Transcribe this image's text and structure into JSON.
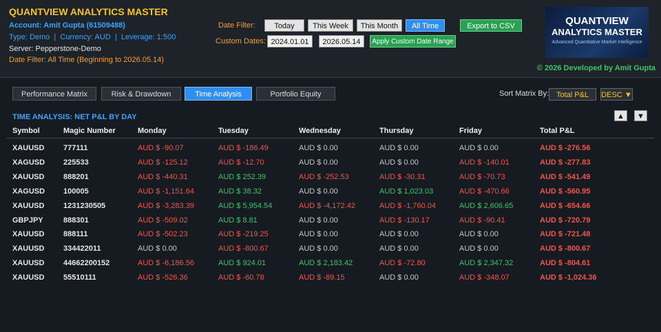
{
  "header": {
    "title": "QUANTVIEW ANALYTICS MASTER",
    "account": "Account: Amit Gupta (61509488)",
    "account_info": "Type: Demo  |  Currency: AUD  |  Leverage: 1:500",
    "server": "Server: Pepperstone-Demo",
    "date_filter_status": "Date Filter: All Time (Beginning to 2026.05.14)"
  },
  "filters": {
    "label": "Date Filter:",
    "buttons": [
      "Today",
      "This Week",
      "This Month",
      "All Time"
    ],
    "active": 3
  },
  "export_button": "Export to CSV",
  "custom_dates": {
    "label": "Custom Dates:",
    "from": "2024.01.01",
    "to": "2026.05.14",
    "apply": "Apply Custom Date Range"
  },
  "logo": {
    "line1": "QUANTVIEW",
    "line2": "ANALYTICS MASTER",
    "tagline": "Advanced Quantitative Market Intelligence"
  },
  "credit": "© 2026 Developed by Amit Gupta",
  "tabs": {
    "items": [
      "Performance Matrix",
      "Risk & Drawdown",
      "Time Analysis",
      "Portfolio Equity"
    ],
    "active": 2
  },
  "sort": {
    "label": "Sort Matrix By:",
    "field": "Total P&L",
    "order": "DESC ▼"
  },
  "section_title": "TIME ANALYSIS: NET P&L BY DAY",
  "scroll_buttons": [
    "▲",
    "▼"
  ],
  "table": {
    "columns": [
      "Symbol",
      "Magic Number",
      "Monday",
      "Tuesday",
      "Wednesday",
      "Thursday",
      "Friday",
      "Total P&L"
    ],
    "rows": [
      [
        "XAUUSD",
        "777111",
        "AUD $ -90.07",
        "AUD $ -186.49",
        "AUD $ 0.00",
        "AUD $ 0.00",
        "AUD $ 0.00",
        "AUD $ -276.56"
      ],
      [
        "XAGUSD",
        "225533",
        "AUD $ -125.12",
        "AUD $ -12.70",
        "AUD $ 0.00",
        "AUD $ 0.00",
        "AUD $ -140.01",
        "AUD $ -277.83"
      ],
      [
        "XAUUSD",
        "888201",
        "AUD $ -440.31",
        "AUD $ 252.39",
        "AUD $ -252.53",
        "AUD $ -30.31",
        "AUD $ -70.73",
        "AUD $ -541.49"
      ],
      [
        "XAGUSD",
        "100005",
        "AUD $ -1,151.64",
        "AUD $ 38.32",
        "AUD $ 0.00",
        "AUD $ 1,023.03",
        "AUD $ -470.66",
        "AUD $ -560.95"
      ],
      [
        "XAUUSD",
        "1231230505",
        "AUD $ -3,283.39",
        "AUD $ 5,954.54",
        "AUD $ -4,172.42",
        "AUD $ -1,760.04",
        "AUD $ 2,606.65",
        "AUD $ -654.66"
      ],
      [
        "GBPJPY",
        "888301",
        "AUD $ -509.02",
        "AUD $ 8.81",
        "AUD $ 0.00",
        "AUD $ -130.17",
        "AUD $ -90.41",
        "AUD $ -720.79"
      ],
      [
        "XAUUSD",
        "888111",
        "AUD $ -502.23",
        "AUD $ -219.25",
        "AUD $ 0.00",
        "AUD $ 0.00",
        "AUD $ 0.00",
        "AUD $ -721.48"
      ],
      [
        "XAUUSD",
        "334422011",
        "AUD $ 0.00",
        "AUD $ -800.67",
        "AUD $ 0.00",
        "AUD $ 0.00",
        "AUD $ 0.00",
        "AUD $ -800.67"
      ],
      [
        "XAUUSD",
        "44662200152",
        "AUD $ -6,186.56",
        "AUD $ 924.01",
        "AUD $ 2,183.42",
        "AUD $ -72.80",
        "AUD $ 2,347.32",
        "AUD $ -804.61"
      ],
      [
        "XAUUSD",
        "55510111",
        "AUD $ -526.36",
        "AUD $ -60.78",
        "AUD $ -89.15",
        "AUD $ 0.00",
        "AUD $ -348.07",
        "AUD $ -1,024.36"
      ]
    ]
  }
}
